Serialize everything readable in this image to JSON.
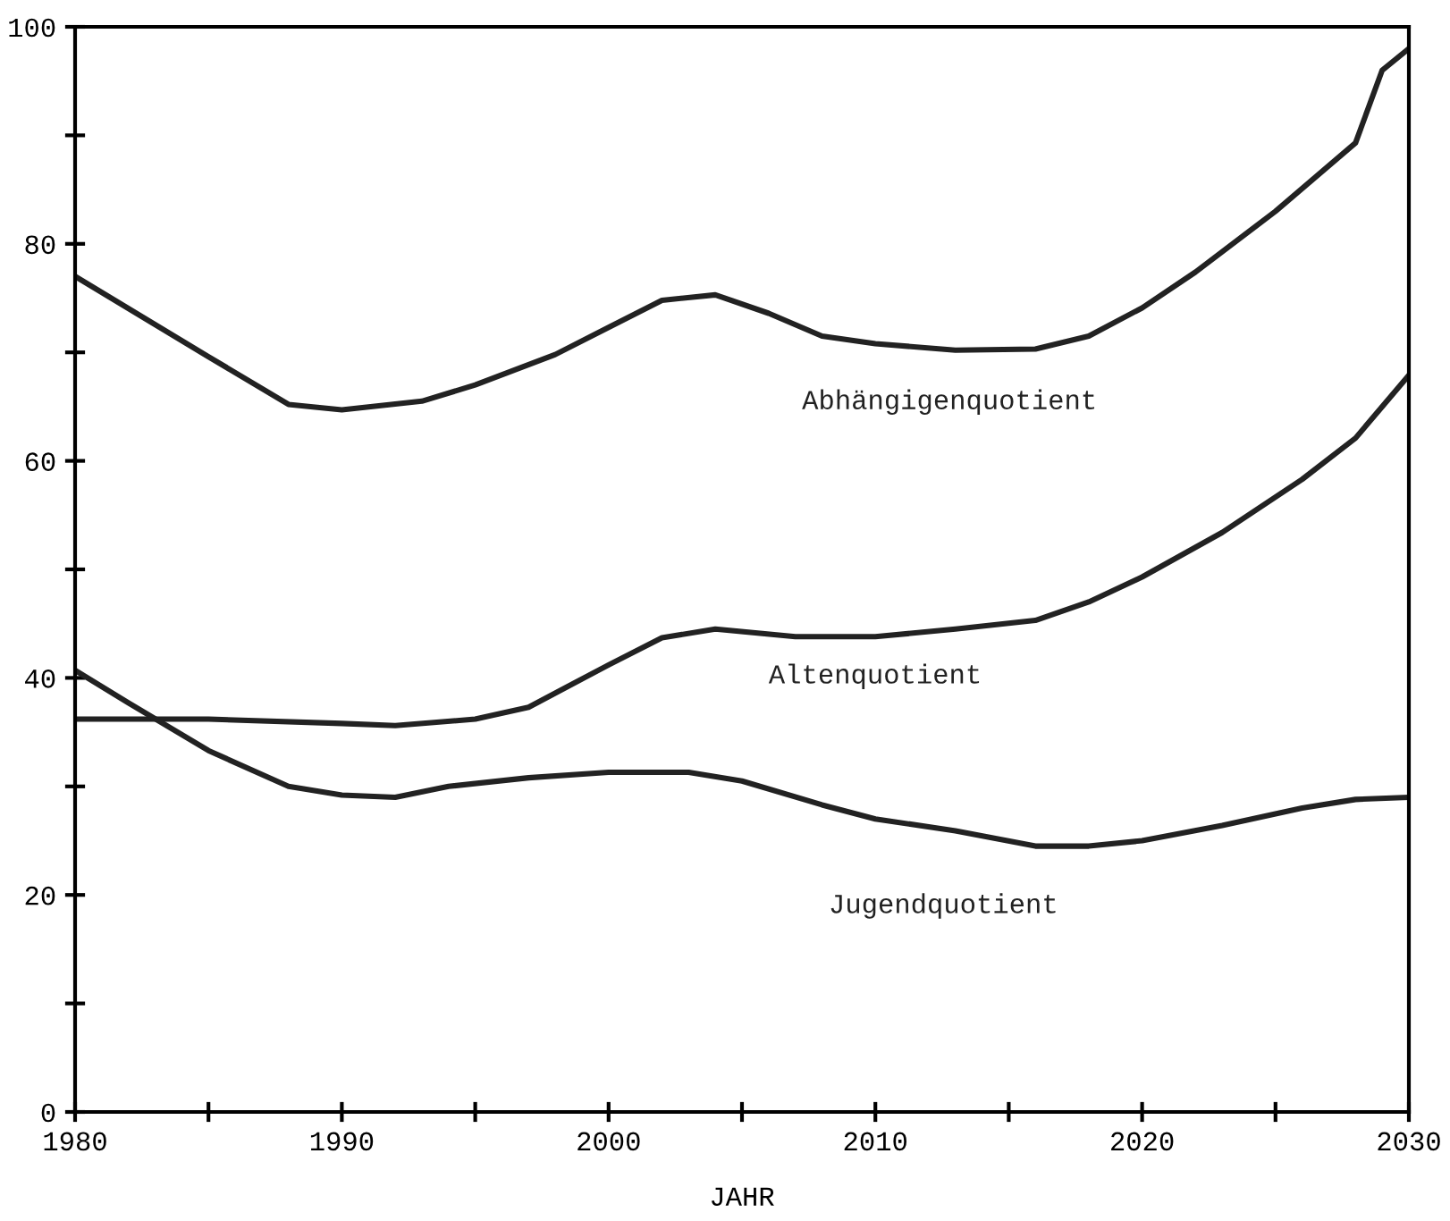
{
  "chart_data": {
    "type": "line",
    "xlabel": "JAHR",
    "xlim": [
      1980,
      2030
    ],
    "ylim": [
      0,
      100
    ],
    "xticks": [
      1980,
      {
        "value": 1985,
        "label": null
      },
      1990,
      {
        "value": 1995,
        "label": null
      },
      2000,
      {
        "value": 2005,
        "label": null
      },
      2010,
      {
        "value": 2015,
        "label": null
      },
      2020,
      {
        "value": 2025,
        "label": null
      },
      2030
    ],
    "yticks": [
      0,
      {
        "value": 10,
        "label": null
      },
      20,
      {
        "value": 30,
        "label": null
      },
      40,
      {
        "value": 50,
        "label": null
      },
      60,
      {
        "value": 70,
        "label": null
      },
      80,
      {
        "value": 90,
        "label": null
      },
      100
    ],
    "grid": false,
    "legend": false,
    "marker": "none",
    "line_style": "solid",
    "series": [
      {
        "name": "Abhängigenquotient",
        "color": "#222222",
        "x": [
          1980,
          1985,
          1988,
          1990,
          1993,
          1995,
          1998,
          2000,
          2002,
          2004,
          2006,
          2008,
          2010,
          2013,
          2016,
          2018,
          2020,
          2022,
          2025,
          2028,
          2029,
          2030
        ],
        "values": [
          77,
          69.6,
          65.2,
          64.7,
          65.5,
          67,
          69.8,
          72.3,
          74.8,
          75.3,
          73.6,
          71.5,
          70.8,
          70.2,
          70.3,
          71.5,
          74.1,
          77.4,
          83,
          89.3,
          96,
          98
        ]
      },
      {
        "name": "Altenquotient",
        "color": "#222222",
        "x": [
          1980,
          1985,
          1990,
          1992,
          1995,
          1997,
          2000,
          2002,
          2004,
          2007,
          2010,
          2013,
          2016,
          2018,
          2020,
          2023,
          2026,
          2028,
          2030
        ],
        "values": [
          36.2,
          36.2,
          35.8,
          35.6,
          36.2,
          37.3,
          41.2,
          43.7,
          44.5,
          43.8,
          43.8,
          44.5,
          45.3,
          47,
          49.3,
          53.4,
          58.3,
          62.1,
          67.9
        ]
      },
      {
        "name": "Jugendquotient",
        "color": "#222222",
        "x": [
          1980,
          1982,
          1985,
          1988,
          1990,
          1992,
          1994,
          1997,
          2000,
          2003,
          2005,
          2008,
          2010,
          2013,
          2016,
          2018,
          2020,
          2023,
          2026,
          2028,
          2030
        ],
        "values": [
          40.7,
          37.7,
          33.3,
          30,
          29.2,
          29,
          30,
          30.8,
          31.3,
          31.3,
          30.5,
          28.3,
          27,
          25.9,
          24.5,
          24.5,
          25,
          26.4,
          28,
          28.8,
          29
        ]
      }
    ]
  }
}
